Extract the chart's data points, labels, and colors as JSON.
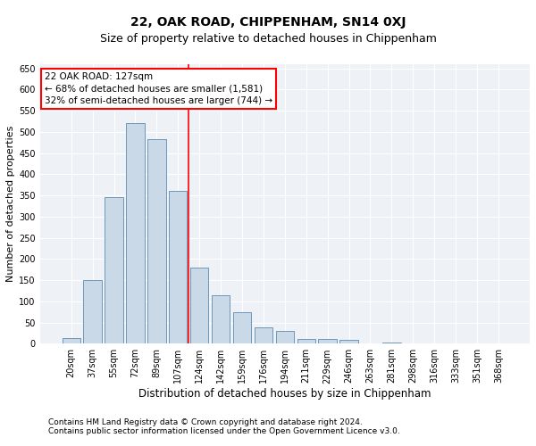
{
  "title1": "22, OAK ROAD, CHIPPENHAM, SN14 0XJ",
  "title2": "Size of property relative to detached houses in Chippenham",
  "xlabel": "Distribution of detached houses by size in Chippenham",
  "ylabel": "Number of detached properties",
  "footnote1": "Contains HM Land Registry data © Crown copyright and database right 2024.",
  "footnote2": "Contains public sector information licensed under the Open Government Licence v3.0.",
  "categories": [
    "20sqm",
    "37sqm",
    "55sqm",
    "72sqm",
    "89sqm",
    "107sqm",
    "124sqm",
    "142sqm",
    "159sqm",
    "176sqm",
    "194sqm",
    "211sqm",
    "229sqm",
    "246sqm",
    "263sqm",
    "281sqm",
    "298sqm",
    "316sqm",
    "333sqm",
    "351sqm",
    "368sqm"
  ],
  "values": [
    13,
    150,
    345,
    520,
    483,
    360,
    180,
    115,
    75,
    38,
    29,
    11,
    11,
    8,
    0,
    2,
    0,
    0,
    0,
    0,
    0
  ],
  "bar_color": "#c9d9e8",
  "bar_edge_color": "#5a8ab0",
  "vline_x_index": 6,
  "vline_color": "red",
  "annotation_text": "22 OAK ROAD: 127sqm\n← 68% of detached houses are smaller (1,581)\n32% of semi-detached houses are larger (744) →",
  "annotation_box_color": "white",
  "annotation_box_edge_color": "red",
  "ylim": [
    0,
    660
  ],
  "yticks": [
    0,
    50,
    100,
    150,
    200,
    250,
    300,
    350,
    400,
    450,
    500,
    550,
    600,
    650
  ],
  "bg_color": "#eef2f7",
  "grid_color": "white",
  "title1_fontsize": 10,
  "title2_fontsize": 9,
  "xlabel_fontsize": 8.5,
  "ylabel_fontsize": 8,
  "tick_fontsize": 7,
  "annot_fontsize": 7.5,
  "footnote_fontsize": 6.5
}
